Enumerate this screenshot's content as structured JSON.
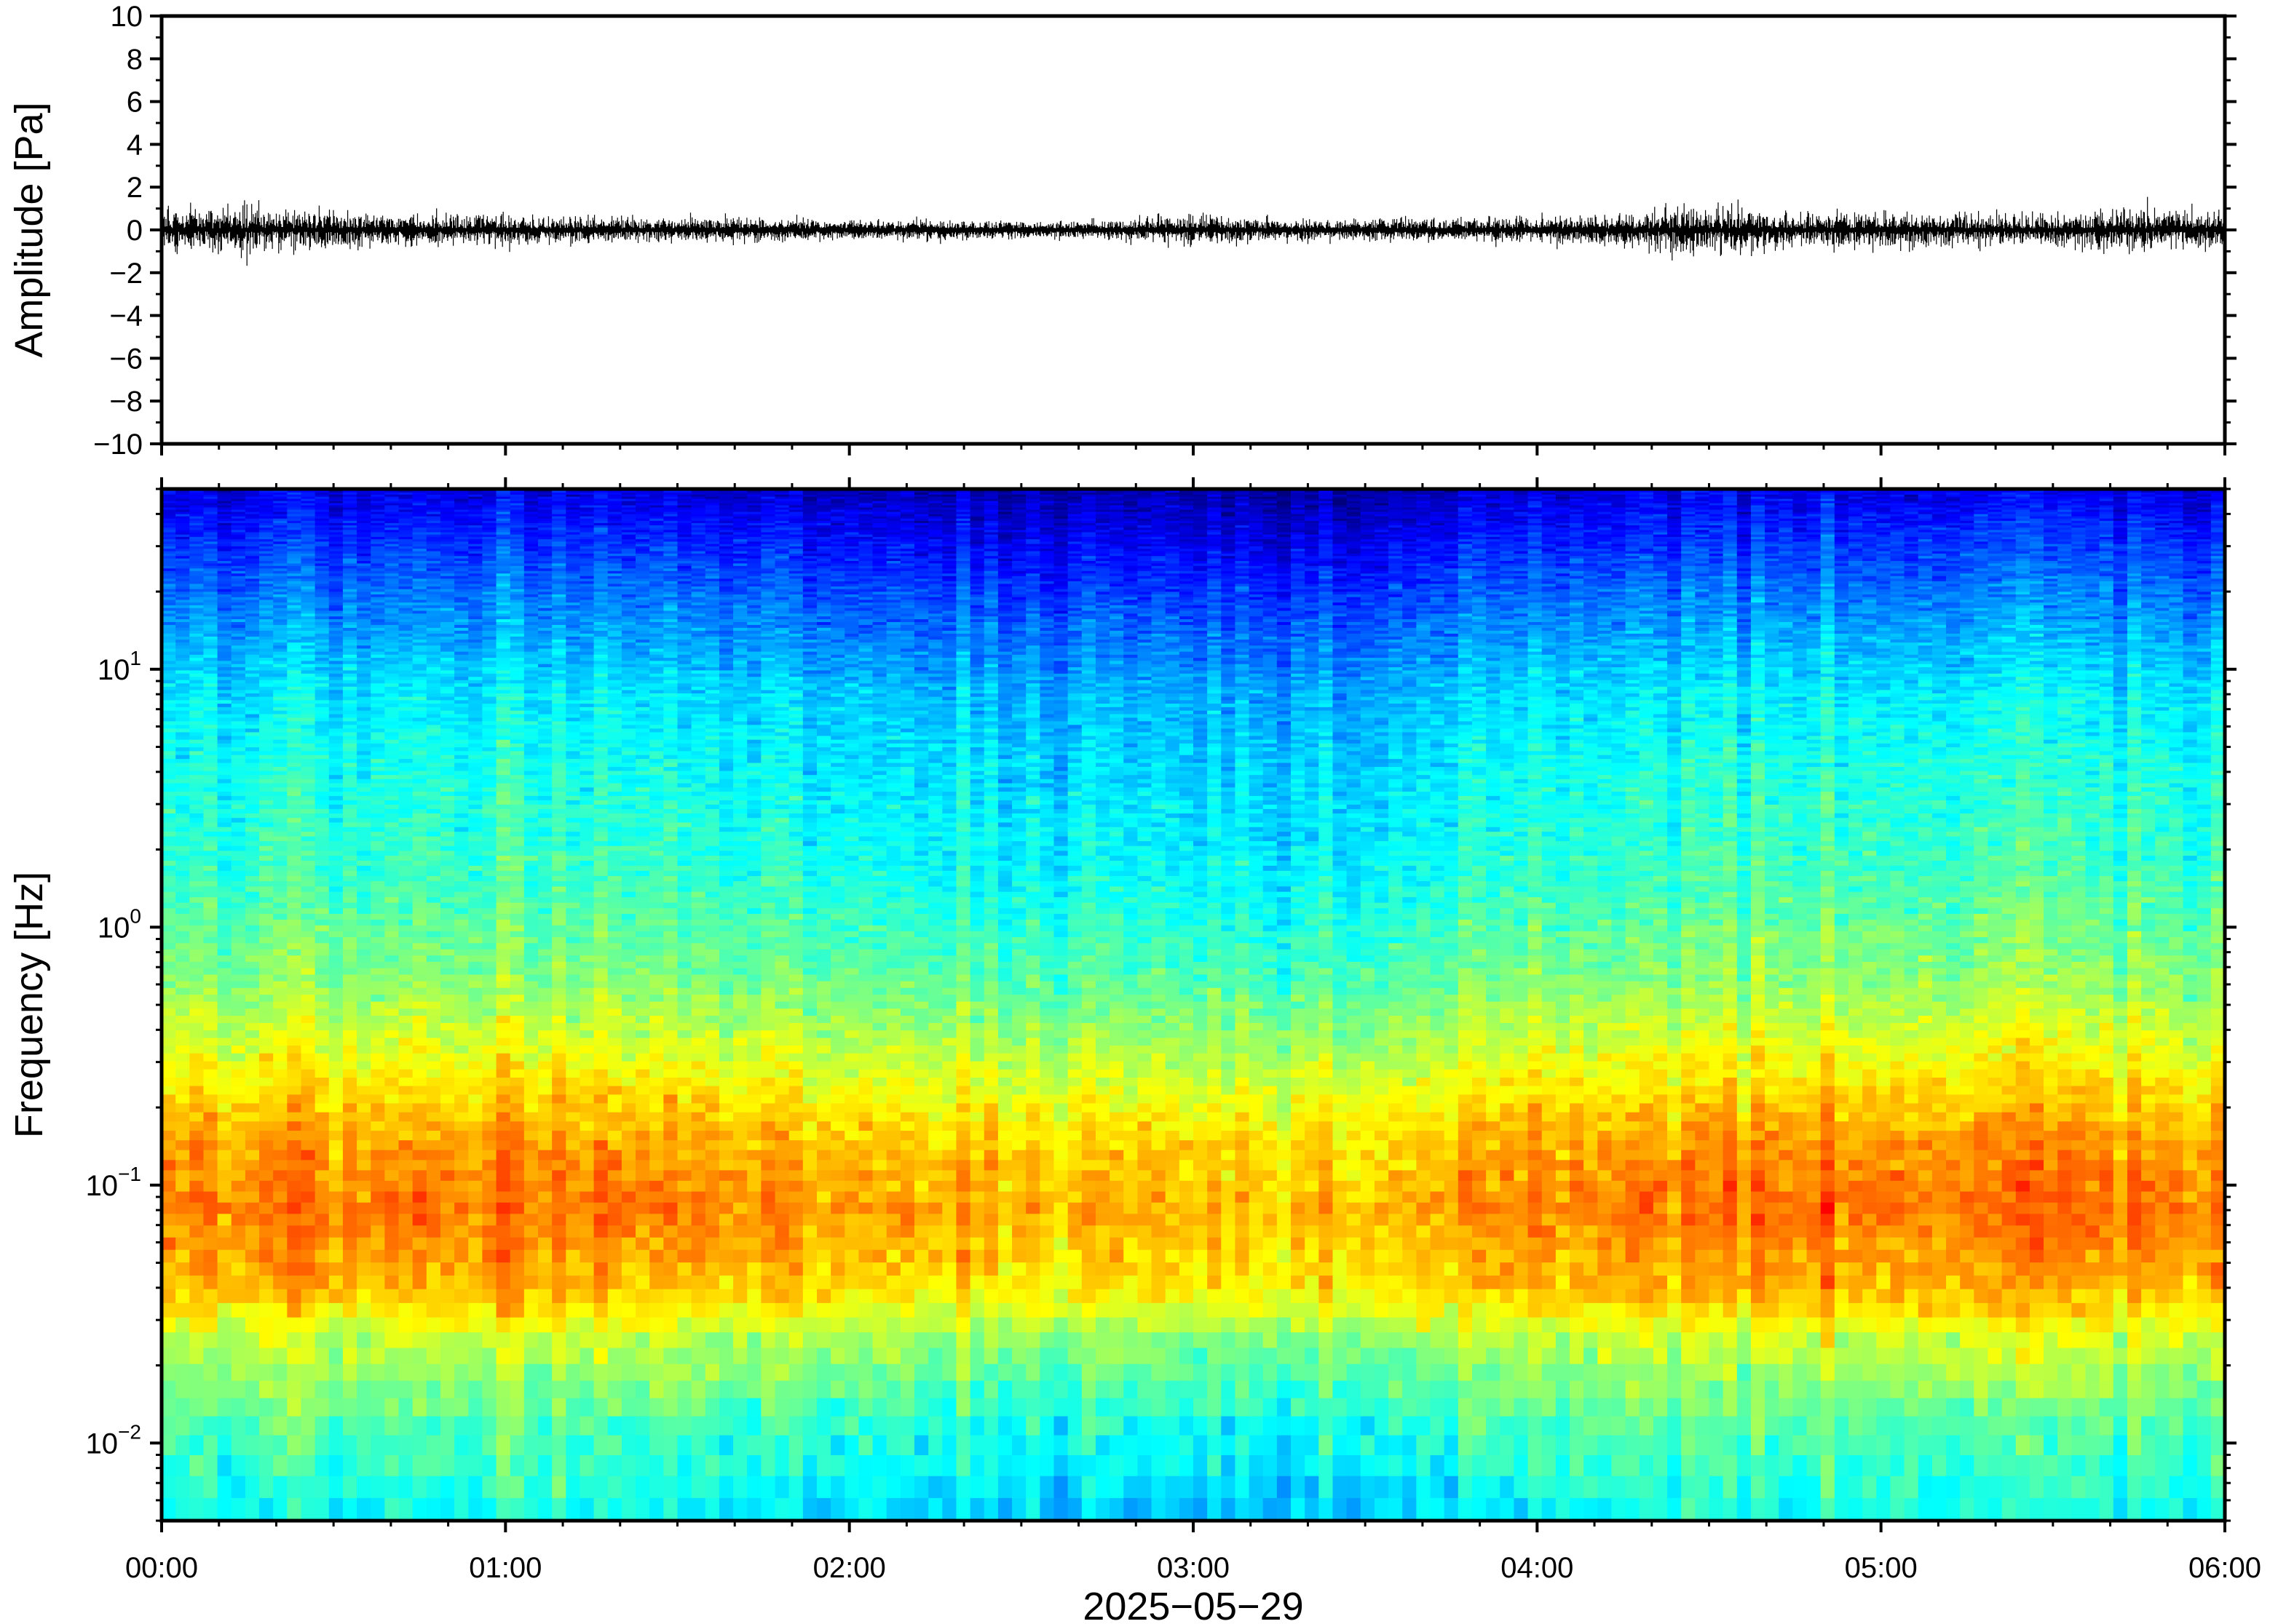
{
  "chart_data": [
    {
      "type": "line",
      "panel": "waveform",
      "ylabel": "Amplitude [Pa]",
      "ylim": [
        -10,
        10
      ],
      "yticks": [
        10,
        8,
        6,
        4,
        2,
        0,
        -2,
        -4,
        -6,
        -8,
        -10
      ],
      "ytick_labels": [
        "10",
        "8",
        "6",
        "4",
        "2",
        "0",
        "−2",
        "−4",
        "−6",
        "−8",
        "−10"
      ],
      "xlim_hours": [
        0,
        6
      ],
      "baseline": 0,
      "typical_amplitude": 0.25,
      "max_abs_amplitude": 1.6,
      "envelope": {
        "hours": [
          0.0,
          0.25,
          0.5,
          0.75,
          1.0,
          1.25,
          1.5,
          1.75,
          2.0,
          2.25,
          2.5,
          2.75,
          3.0,
          3.25,
          3.5,
          3.75,
          4.0,
          4.25,
          4.5,
          4.75,
          5.0,
          5.25,
          5.5,
          5.75,
          6.0
        ],
        "max_abs": [
          1.1,
          1.4,
          1.0,
          0.9,
          0.8,
          0.7,
          0.7,
          0.6,
          0.5,
          0.5,
          0.4,
          0.5,
          0.9,
          0.6,
          0.6,
          0.6,
          0.7,
          0.9,
          1.6,
          0.9,
          1.0,
          0.9,
          0.9,
          1.3,
          1.1
        ]
      },
      "color": "#000000"
    },
    {
      "type": "heatmap",
      "panel": "spectrogram",
      "ylabel": "Frequency [Hz]",
      "yscale": "log",
      "ylim_hz": [
        0.005,
        50
      ],
      "yticks": [
        {
          "base": "10",
          "exp": "−2"
        },
        {
          "base": "10",
          "exp": "−1"
        },
        {
          "base": "10",
          "exp": "0"
        },
        {
          "base": "10",
          "exp": "1"
        }
      ],
      "xlabel": "2025−05−29",
      "xticks": [
        "00:00",
        "01:00",
        "02:00",
        "03:00",
        "04:00",
        "05:00",
        "06:00"
      ],
      "xlim_hours": [
        0,
        6
      ],
      "colormap": "jet",
      "colormap_stops": [
        "#00007f",
        "#0000ff",
        "#0080ff",
        "#00ffff",
        "#7fff7f",
        "#ffff00",
        "#ff8000",
        "#ff0000",
        "#7f0000"
      ],
      "color_by_frequency": {
        "freq_hz": [
          50,
          30,
          15,
          8,
          4,
          1.5,
          0.6,
          0.3,
          0.15,
          0.08,
          0.04,
          0.025,
          0.012,
          0.005
        ],
        "level": [
          0.08,
          0.16,
          0.26,
          0.34,
          0.38,
          0.42,
          0.5,
          0.6,
          0.7,
          0.74,
          0.68,
          0.55,
          0.44,
          0.36
        ]
      },
      "level_variation_by_hour": {
        "hours": [
          0.0,
          0.5,
          1.0,
          1.5,
          2.0,
          2.5,
          3.0,
          3.5,
          4.0,
          4.5,
          5.0,
          5.5,
          6.0
        ],
        "offset": [
          0.02,
          0.02,
          0.02,
          0.0,
          -0.02,
          -0.04,
          -0.03,
          -0.05,
          0.01,
          0.03,
          0.02,
          0.03,
          0.02
        ]
      }
    }
  ]
}
